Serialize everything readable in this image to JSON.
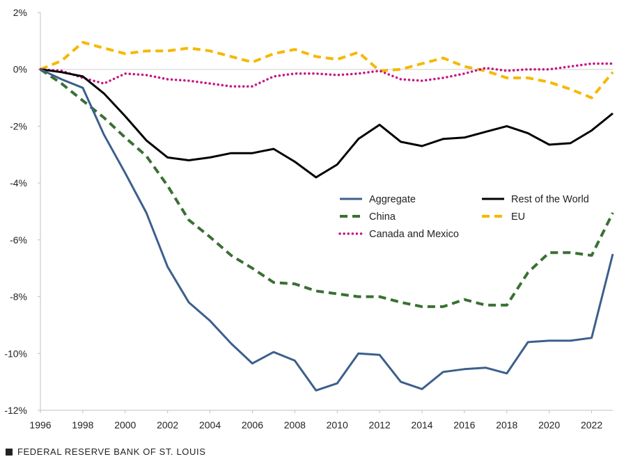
{
  "chart_data": {
    "type": "line",
    "title": "",
    "xlabel": "",
    "ylabel": "",
    "x": [
      1996,
      1997,
      1998,
      1999,
      2000,
      2001,
      2002,
      2003,
      2004,
      2005,
      2006,
      2007,
      2008,
      2009,
      2010,
      2011,
      2012,
      2013,
      2014,
      2015,
      2016,
      2017,
      2018,
      2019,
      2020,
      2021,
      2022,
      2023
    ],
    "xlim": [
      1996,
      2023
    ],
    "ylim": [
      -12,
      2
    ],
    "x_ticks": [
      1996,
      1998,
      2000,
      2002,
      2004,
      2006,
      2008,
      2010,
      2012,
      2014,
      2016,
      2018,
      2020,
      2022
    ],
    "x_tick_labels": [
      "1996",
      "1998",
      "2000",
      "2002",
      "2004",
      "2006",
      "2008",
      "2010",
      "2012",
      "2014",
      "2016",
      "2018",
      "2020",
      "2022"
    ],
    "y_ticks": [
      2,
      0,
      -2,
      -4,
      -6,
      -8,
      -10,
      -12
    ],
    "y_tick_labels": [
      "2%",
      "0%",
      "-2%",
      "-4%",
      "-6%",
      "-8%",
      "-10%",
      "-12%"
    ],
    "grid": false,
    "legend_position": "center-right",
    "series": [
      {
        "name": "Aggregate",
        "color": "#3c5f8c",
        "style": "solid",
        "values": [
          0,
          -0.35,
          -0.65,
          -2.3,
          -3.65,
          -5.05,
          -6.95,
          -8.2,
          -8.85,
          -9.65,
          -10.35,
          -9.95,
          -10.25,
          -11.3,
          -11.05,
          -10.0,
          -10.05,
          -11.0,
          -11.25,
          -10.65,
          -10.55,
          -10.5,
          -10.7,
          -9.6,
          -9.55,
          -9.55,
          -9.45,
          -6.5
        ]
      },
      {
        "name": "Rest of the World",
        "color": "#000000",
        "style": "solid",
        "values": [
          0,
          -0.1,
          -0.25,
          -0.85,
          -1.65,
          -2.5,
          -3.1,
          -3.2,
          -3.1,
          -2.95,
          -2.95,
          -2.8,
          -3.25,
          -3.8,
          -3.35,
          -2.45,
          -1.95,
          -2.55,
          -2.7,
          -2.45,
          -2.4,
          -2.2,
          -2.0,
          -2.25,
          -2.65,
          -2.6,
          -2.15,
          -1.55
        ]
      },
      {
        "name": "China",
        "color": "#3a7033",
        "style": "dashed",
        "values": [
          0,
          -0.5,
          -1.1,
          -1.7,
          -2.4,
          -3.05,
          -4.1,
          -5.3,
          -5.9,
          -6.55,
          -7.0,
          -7.5,
          -7.55,
          -7.8,
          -7.9,
          -8.0,
          -8.0,
          -8.2,
          -8.35,
          -8.35,
          -8.1,
          -8.3,
          -8.3,
          -7.15,
          -6.45,
          -6.45,
          -6.55,
          -5.05
        ]
      },
      {
        "name": "EU",
        "color": "#f5b800",
        "style": "dashed",
        "values": [
          0,
          0.3,
          0.95,
          0.75,
          0.55,
          0.65,
          0.65,
          0.75,
          0.65,
          0.45,
          0.25,
          0.55,
          0.7,
          0.45,
          0.35,
          0.6,
          -0.05,
          0.0,
          0.2,
          0.4,
          0.1,
          -0.05,
          -0.3,
          -0.3,
          -0.45,
          -0.7,
          -1.0,
          -0.1
        ]
      },
      {
        "name": "Canada and Mexico",
        "color": "#c71585",
        "style": "dotted",
        "values": [
          0,
          -0.05,
          -0.3,
          -0.5,
          -0.15,
          -0.2,
          -0.35,
          -0.4,
          -0.5,
          -0.6,
          -0.6,
          -0.25,
          -0.15,
          -0.15,
          -0.2,
          -0.15,
          -0.05,
          -0.35,
          -0.4,
          -0.3,
          -0.15,
          0.05,
          -0.05,
          0.0,
          0.0,
          0.1,
          0.2,
          0.2
        ]
      }
    ]
  },
  "footer": {
    "source_label": "FEDERAL RESERVE BANK OF ST. LOUIS"
  }
}
